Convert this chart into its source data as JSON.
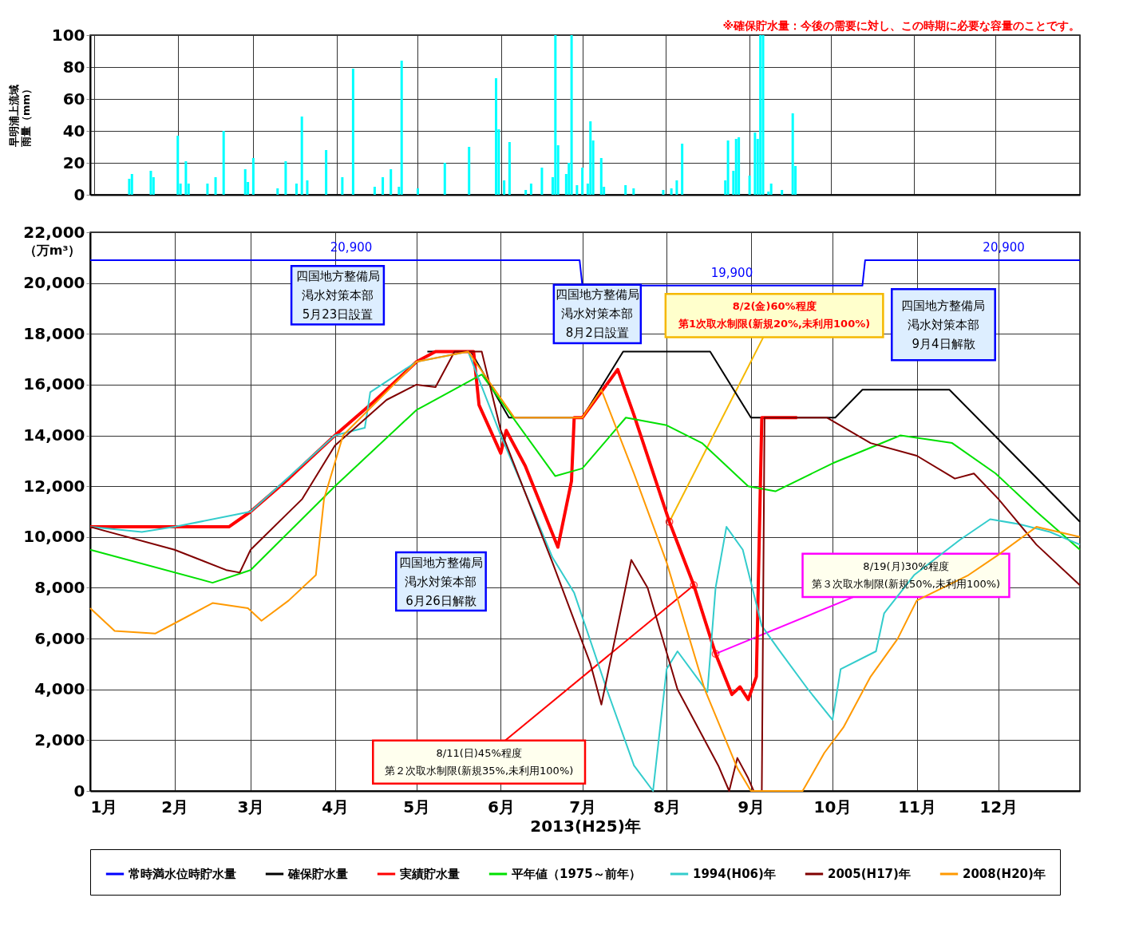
{
  "chart_data": [
    {
      "type": "bar",
      "ylabel": "早明浦上流域雨量（mm）",
      "color": "#00ffff",
      "x": [
        "2013-01-14",
        "2013-01-15",
        "2013-01-22",
        "2013-01-23",
        "2013-02-01",
        "2013-02-02",
        "2013-02-04",
        "2013-02-05",
        "2013-02-12",
        "2013-02-15",
        "2013-02-18",
        "2013-02-26",
        "2013-02-27",
        "2013-03-01",
        "2013-03-10",
        "2013-03-13",
        "2013-03-17",
        "2013-03-19",
        "2013-03-21",
        "2013-03-28",
        "2013-04-03",
        "2013-04-07",
        "2013-04-15",
        "2013-04-18",
        "2013-04-21",
        "2013-04-24",
        "2013-04-25",
        "2013-05-01",
        "2013-05-11",
        "2013-05-20",
        "2013-05-30",
        "2013-05-31",
        "2013-06-02",
        "2013-06-04",
        "2013-06-10",
        "2013-06-12",
        "2013-06-16",
        "2013-06-20",
        "2013-06-21",
        "2013-06-22",
        "2013-06-25",
        "2013-06-26",
        "2013-06-27",
        "2013-06-29",
        "2013-07-01",
        "2013-07-03",
        "2013-07-04",
        "2013-07-05",
        "2013-07-08",
        "2013-07-09",
        "2013-07-17",
        "2013-07-20",
        "2013-07-31",
        "2013-08-03",
        "2013-08-05",
        "2013-08-07",
        "2013-08-23",
        "2013-08-24",
        "2013-08-26",
        "2013-08-27",
        "2013-08-28",
        "2013-09-01",
        "2013-09-03",
        "2013-09-04",
        "2013-09-05",
        "2013-09-06",
        "2013-09-08",
        "2013-09-09",
        "2013-09-13",
        "2013-09-17",
        "2013-09-18"
      ],
      "values": [
        10,
        13,
        15,
        11,
        37,
        7,
        21,
        7,
        7,
        11,
        40,
        16,
        8,
        23,
        4,
        21,
        7,
        49,
        9,
        28,
        11,
        79,
        5,
        11,
        16,
        5,
        84,
        4,
        20,
        30,
        73,
        41,
        9,
        33,
        3,
        7,
        17,
        11,
        100,
        31,
        13,
        20,
        100,
        6,
        17,
        7,
        46,
        34,
        23,
        5,
        6,
        4,
        3,
        4,
        9,
        32,
        9,
        34,
        15,
        35,
        36,
        12,
        39,
        35,
        100,
        100,
        2,
        7,
        3,
        51,
        18
      ],
      "xlim": [
        "2013-01-01",
        "2013-12-31"
      ],
      "xticks": [
        "2013-01-01",
        "2013-02-01",
        "2013-03-01",
        "2013-04-01",
        "2013-05-01",
        "2013-06-01",
        "2013-07-01",
        "2013-08-01",
        "2013-09-01",
        "2013-10-01",
        "2013-11-01",
        "2013-12-01"
      ],
      "ylim": [
        0,
        100
      ],
      "yticks": [
        0,
        20,
        40,
        60,
        80,
        100
      ],
      "grid": true,
      "tick_labels": "y",
      "annotations": [
        "※確保貯水量：今後の需要に対し、この時期に必要な容量のことです。"
      ]
    },
    {
      "type": "line",
      "xlabel": "2013(H25)年",
      "ylabel": "（万m³）",
      "legend": "bottom",
      "grid": true,
      "xlim": [
        "2013-01-01",
        "2013-12-31"
      ],
      "xticks": [
        {
          "value": "2013-01-01",
          "label": "1月"
        },
        {
          "value": "2013-02-01",
          "label": "2月"
        },
        {
          "value": "2013-03-01",
          "label": "3月"
        },
        {
          "value": "2013-04-01",
          "label": "4月"
        },
        {
          "value": "2013-05-01",
          "label": "5月"
        },
        {
          "value": "2013-06-01",
          "label": "6月"
        },
        {
          "value": "2013-07-01",
          "label": "7月"
        },
        {
          "value": "2013-08-01",
          "label": "8月"
        },
        {
          "value": "2013-09-01",
          "label": "9月"
        },
        {
          "value": "2013-10-01",
          "label": "10月"
        },
        {
          "value": "2013-11-01",
          "label": "11月"
        },
        {
          "value": "2013-12-01",
          "label": "12月"
        }
      ],
      "ylim": [
        0,
        22000
      ],
      "yticks": [
        0,
        {
          "value": 2000,
          "label": "2,000"
        },
        {
          "value": 4000,
          "label": "4,000"
        },
        {
          "value": 6000,
          "label": "6,000"
        },
        {
          "value": 8000,
          "label": "8,000"
        },
        {
          "value": 10000,
          "label": "10,000"
        },
        {
          "value": 12000,
          "label": "12,000"
        },
        {
          "value": 14000,
          "label": "14,000"
        },
        {
          "value": 16000,
          "label": "16,000"
        },
        {
          "value": 18000,
          "label": "18,000"
        },
        {
          "value": 20000,
          "label": "20,000"
        },
        {
          "value": 22000,
          "label": "22,000"
        }
      ],
      "series": [
        {
          "name": "常時満水位時貯水量",
          "color": "#0000ff",
          "x": [
            "2013-01-01",
            "2013-06-30",
            "2013-07-01",
            "2013-10-12",
            "2013-10-13",
            "2013-12-31"
          ],
          "values": [
            20900,
            20900,
            19900,
            19900,
            20900,
            20900
          ]
        },
        {
          "name": "確保貯水量",
          "color": "#000000",
          "x": [
            "2013-05-05",
            "2013-05-21",
            "2013-06-04",
            "2013-07-01",
            "2013-07-16",
            "2013-08-17",
            "2013-09-01",
            "2013-10-02",
            "2013-10-12",
            "2013-11-13",
            "2013-12-31"
          ],
          "values": [
            17300,
            17300,
            14700,
            14700,
            17300,
            17300,
            14700,
            14700,
            15800,
            15800,
            10600
          ]
        },
        {
          "name": "実績貯水量",
          "color": "#ff0000",
          "x": [
            "2013-01-01",
            "2013-02-21",
            "2013-03-01",
            "2013-03-15",
            "2013-04-01",
            "2013-04-15",
            "2013-05-01",
            "2013-05-08",
            "2013-05-22",
            "2013-05-24",
            "2013-06-01",
            "2013-06-03",
            "2013-06-10",
            "2013-06-22",
            "2013-06-27",
            "2013-06-28",
            "2013-07-01",
            "2013-07-14",
            "2013-07-20",
            "2013-08-02",
            "2013-08-11",
            "2013-08-19",
            "2013-08-25",
            "2013-08-28",
            "2013-08-31",
            "2013-09-03",
            "2013-09-05",
            "2013-09-18"
          ],
          "values": [
            10400,
            10400,
            11000,
            12300,
            14000,
            15300,
            16900,
            17300,
            17300,
            15200,
            13300,
            14200,
            12800,
            9600,
            12200,
            14700,
            14700,
            16600,
            14800,
            10600,
            8100,
            5400,
            3800,
            4100,
            3600,
            4500,
            14700,
            14700
          ]
        },
        {
          "name": "平年値（1975～前年）",
          "color": "#00e000",
          "x": [
            "2013-01-01",
            "2013-02-15",
            "2013-03-01",
            "2013-04-01",
            "2013-05-01",
            "2013-05-25",
            "2013-06-21",
            "2013-07-01",
            "2013-07-17",
            "2013-08-01",
            "2013-08-14",
            "2013-08-22",
            "2013-08-31",
            "2013-09-10",
            "2013-10-01",
            "2013-10-26",
            "2013-11-14",
            "2013-11-30",
            "2013-12-15",
            "2013-12-31"
          ],
          "values": [
            9500,
            8200,
            8700,
            12000,
            15000,
            16400,
            12400,
            12700,
            14700,
            14400,
            13700,
            12900,
            12000,
            11800,
            12900,
            14000,
            13700,
            12500,
            11000,
            9500
          ]
        },
        {
          "name": "1994(H06)年",
          "color": "#33cccc",
          "x": [
            "2013-01-01",
            "2013-01-20",
            "2013-02-01",
            "2013-03-01",
            "2013-04-01",
            "2013-04-12",
            "2013-04-14",
            "2013-05-01",
            "2013-05-20",
            "2013-06-01",
            "2013-06-11",
            "2013-06-20",
            "2013-06-28",
            "2013-07-10",
            "2013-07-20",
            "2013-07-27",
            "2013-08-01",
            "2013-08-05",
            "2013-08-16",
            "2013-08-19",
            "2013-08-23",
            "2013-08-29",
            "2013-09-05",
            "2013-09-11",
            "2013-09-22",
            "2013-10-01",
            "2013-10-04",
            "2013-10-17",
            "2013-10-20",
            "2013-10-31",
            "2013-11-17",
            "2013-11-28",
            "2013-12-09",
            "2013-12-20",
            "2013-12-31"
          ],
          "values": [
            10400,
            10200,
            10400,
            11000,
            14000,
            14300,
            15700,
            16900,
            17300,
            14000,
            11500,
            9200,
            7800,
            4000,
            1000,
            0,
            4800,
            5500,
            3900,
            8000,
            10400,
            9500,
            6500,
            5600,
            4000,
            2800,
            4800,
            5500,
            7000,
            8500,
            9900,
            10700,
            10500,
            10200,
            9700
          ]
        },
        {
          "name": "2005(H17)年",
          "color": "#800000",
          "x": [
            "2013-01-01",
            "2013-02-01",
            "2013-02-20",
            "2013-02-25",
            "2013-03-01",
            "2013-03-20",
            "2013-04-01",
            "2013-04-20",
            "2013-05-01",
            "2013-05-08",
            "2013-05-15",
            "2013-05-25",
            "2013-06-01",
            "2013-06-20",
            "2013-07-04",
            "2013-07-08",
            "2013-07-19",
            "2013-07-25",
            "2013-08-05",
            "2013-08-20",
            "2013-08-24",
            "2013-08-27",
            "2013-08-31",
            "2013-09-02",
            "2013-09-05",
            "2013-09-06",
            "2013-09-29",
            "2013-10-15",
            "2013-11-01",
            "2013-11-15",
            "2013-11-22",
            "2013-12-01",
            "2013-12-15",
            "2013-12-31"
          ],
          "values": [
            10400,
            9500,
            8700,
            8600,
            9500,
            11500,
            13600,
            15400,
            16000,
            15900,
            17300,
            17300,
            14200,
            9000,
            5000,
            3400,
            9100,
            8000,
            4000,
            1000,
            0,
            1300,
            500,
            0,
            0,
            14700,
            14700,
            13700,
            13200,
            12300,
            12500,
            11500,
            9700,
            8100
          ]
        },
        {
          "name": "2008(H20)年",
          "color": "#ff9900",
          "x": [
            "2013-01-01",
            "2013-01-10",
            "2013-01-25",
            "2013-02-01",
            "2013-02-15",
            "2013-02-28",
            "2013-03-05",
            "2013-03-15",
            "2013-03-25",
            "2013-03-28",
            "2013-04-04",
            "2013-05-01",
            "2013-05-20",
            "2013-06-06",
            "2013-07-01",
            "2013-07-08",
            "2013-07-20",
            "2013-08-01",
            "2013-08-15",
            "2013-08-27",
            "2013-09-01",
            "2013-09-20",
            "2013-09-28",
            "2013-10-05",
            "2013-10-15",
            "2013-10-25",
            "2013-11-01",
            "2013-11-20",
            "2013-12-01",
            "2013-12-15",
            "2013-12-31"
          ],
          "values": [
            7200,
            6300,
            6200,
            6600,
            7400,
            7200,
            6700,
            7500,
            8500,
            11500,
            14000,
            16900,
            17300,
            14700,
            14700,
            15800,
            12500,
            9000,
            4000,
            900,
            0,
            0,
            1500,
            2500,
            4500,
            6000,
            7500,
            8500,
            9300,
            10400,
            10000
          ]
        }
      ],
      "annotations": [
        "四国地方整備局渇水対策本部5月23日設置",
        "四国地方整備局渇水対策本部8月2日設置",
        "四国地方整備局渇水対策本部6月26日解散",
        "四国地方整備局渇水対策本部9月4日解散",
        {
          "text": "8/2(金)60%程度第1次取水制限(新規20%,未利用100%)",
          "x": "2013-08-02",
          "y": 10600
        },
        {
          "text": "8/11(日)45%程度第２次取水制限(新規35%,未利用100%)",
          "x": "2013-08-11",
          "y": 8100
        },
        {
          "text": "8/19(月)30%程度第３次取水制限(新規50%,未利用100%)",
          "x": "2013-08-19",
          "y": 5400
        },
        {
          "text": "20,900",
          "x": "2013-04-07",
          "y": 20900
        },
        {
          "text": "19,900",
          "x": "2013-08-25",
          "y": 19900
        },
        {
          "text": "20,900",
          "x": "2013-12-03",
          "y": 20900
        }
      ]
    }
  ]
}
